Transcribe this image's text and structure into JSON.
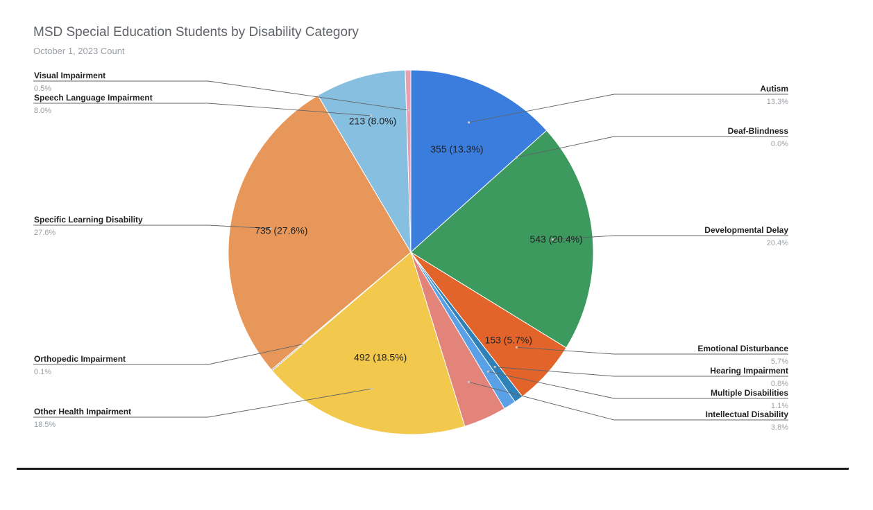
{
  "chart_data": {
    "type": "pie",
    "title": "MSD Special Education Students by Disability Category",
    "subtitle": "October 1, 2023 Count",
    "slices": [
      {
        "label": "Autism",
        "value": 355,
        "pct_label": "13.3%",
        "data_label": "355 (13.3%)",
        "color": "#3b7ddd"
      },
      {
        "label": "Deaf-Blindness",
        "value": 0,
        "pct_label": "0.0%",
        "data_label": "",
        "color": "#e74c3c"
      },
      {
        "label": "Developmental Delay",
        "value": 543,
        "pct_label": "20.4%",
        "data_label": "543 (20.4%)",
        "color": "#3d9a5e"
      },
      {
        "label": "Emotional Disturbance",
        "value": 153,
        "pct_label": "5.7%",
        "data_label": "153 (5.7%)",
        "color": "#e2642a"
      },
      {
        "label": "Hearing Impairment",
        "value": 21,
        "pct_label": "0.8%",
        "data_label": "",
        "color": "#2f82b8"
      },
      {
        "label": "Multiple Disabilities",
        "value": 29,
        "pct_label": "1.1%",
        "data_label": "",
        "color": "#5aa0e6"
      },
      {
        "label": "Intellectual Disability",
        "value": 101,
        "pct_label": "3.8%",
        "data_label": "",
        "color": "#e3847a"
      },
      {
        "label": "Other Health Impairment",
        "value": 492,
        "pct_label": "18.5%",
        "data_label": "492 (18.5%)",
        "color": "#f2c94c"
      },
      {
        "label": "Orthopedic Impairment",
        "value": 3,
        "pct_label": "0.1%",
        "data_label": "",
        "color": "#9e9e9e"
      },
      {
        "label": "Specific Learning Disability",
        "value": 735,
        "pct_label": "27.6%",
        "data_label": "735 (27.6%)",
        "color": "#e8975a"
      },
      {
        "label": "Speech Language Impairment",
        "value": 213,
        "pct_label": "8.0%",
        "data_label": "213 (8.0%)",
        "color": "#86bfe0"
      },
      {
        "label": "Visual Impairment",
        "value": 13,
        "pct_label": "0.5%",
        "data_label": "",
        "color": "#e6a0b0"
      }
    ]
  }
}
